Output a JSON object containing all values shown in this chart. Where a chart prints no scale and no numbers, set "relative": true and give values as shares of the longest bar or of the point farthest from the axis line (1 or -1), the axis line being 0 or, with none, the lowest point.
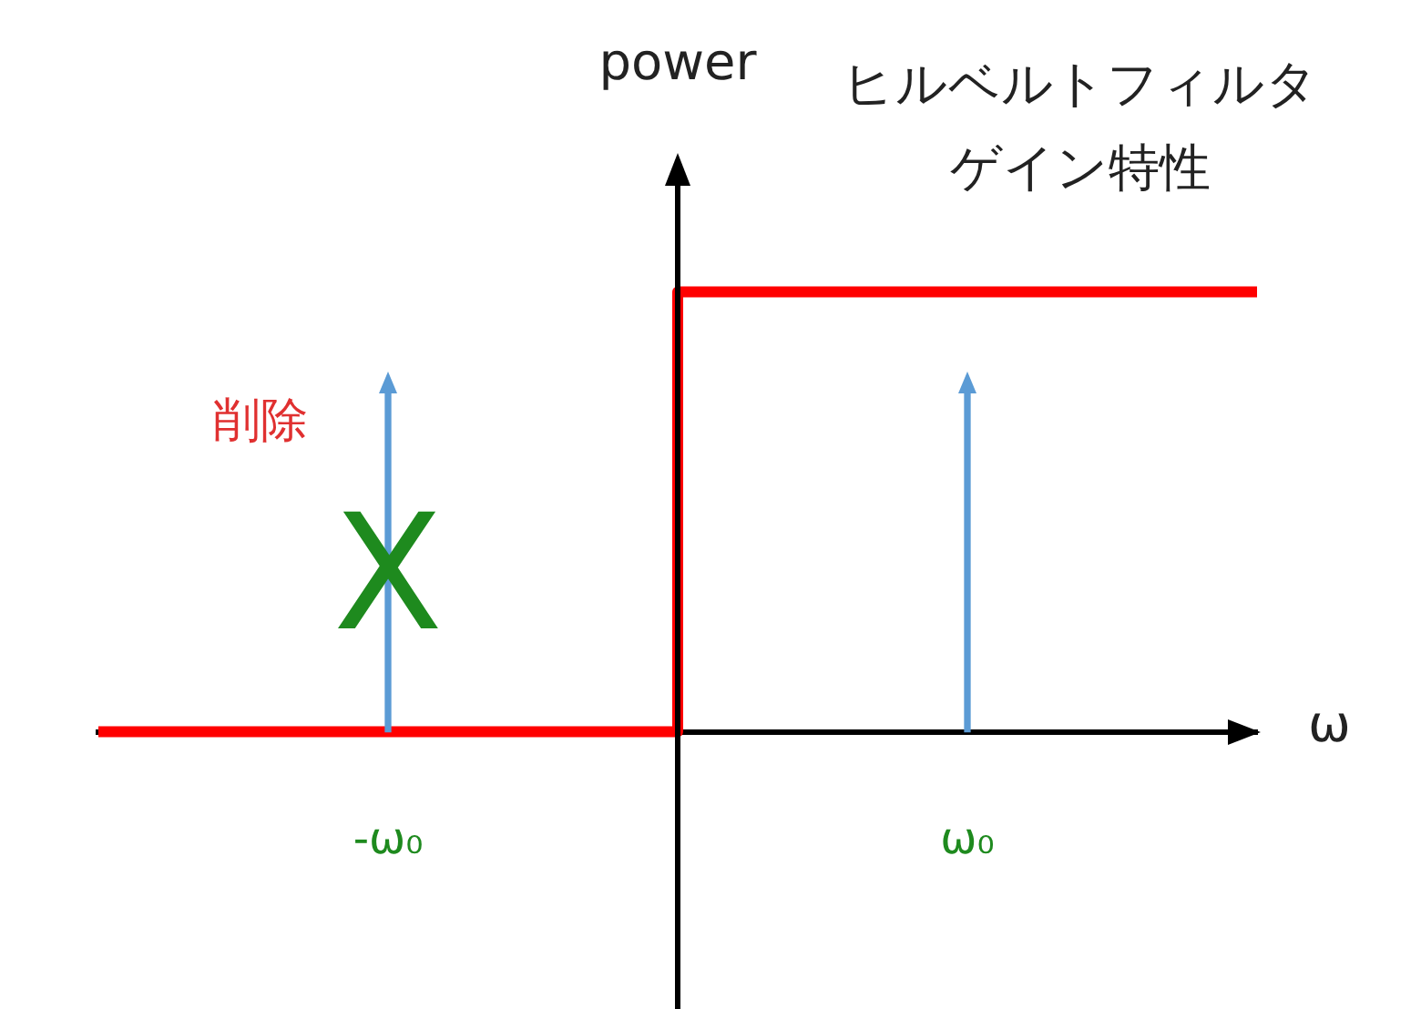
{
  "chart_data": {
    "type": "step",
    "title": "ヒルベルトフィルタ",
    "subtitle": "ゲイン特性",
    "xlabel": "ω",
    "ylabel": "power",
    "relative": true,
    "categories": [
      null,
      "-ω₀",
      null,
      "ω₀",
      null
    ],
    "series": [
      {
        "color": "#ff0000",
        "values": [
          0,
          0,
          1,
          1,
          1
        ]
      },
      {
        "type": "bar",
        "color": "#5b9bd5",
        "values": [
          null,
          0.77,
          null,
          0.77,
          null
        ]
      }
    ],
    "annotations": [
      {
        "text": "削除",
        "x": "-ω₀",
        "y": 0.7
      },
      {
        "text": "X",
        "x": "-ω₀",
        "y": 0.33
      }
    ]
  }
}
